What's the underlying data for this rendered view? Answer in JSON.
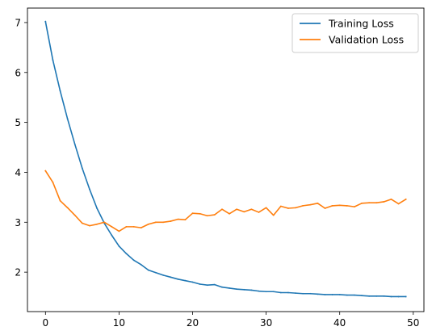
{
  "chart_data": {
    "type": "line",
    "title": "",
    "xlabel": "",
    "ylabel": "",
    "xlim": [
      -2.45,
      51.45
    ],
    "ylim": [
      1.21,
      7.29
    ],
    "xticks": [
      0,
      10,
      20,
      30,
      40,
      50
    ],
    "yticks": [
      2,
      3,
      4,
      5,
      6,
      7
    ],
    "grid": false,
    "legend_position": "top-right",
    "x": [
      0,
      1,
      2,
      3,
      4,
      5,
      6,
      7,
      8,
      9,
      10,
      11,
      12,
      13,
      14,
      15,
      16,
      17,
      18,
      19,
      20,
      21,
      22,
      23,
      24,
      25,
      26,
      27,
      28,
      29,
      30,
      31,
      32,
      33,
      34,
      35,
      36,
      37,
      38,
      39,
      40,
      41,
      42,
      43,
      44,
      45,
      46,
      47,
      48,
      49
    ],
    "series": [
      {
        "name": "Training Loss",
        "color": "#1f77b4",
        "values": [
          7.02,
          6.25,
          5.63,
          5.07,
          4.56,
          4.08,
          3.66,
          3.28,
          2.98,
          2.74,
          2.52,
          2.37,
          2.24,
          2.15,
          2.04,
          1.99,
          1.94,
          1.9,
          1.86,
          1.83,
          1.8,
          1.76,
          1.74,
          1.75,
          1.7,
          1.68,
          1.66,
          1.65,
          1.64,
          1.62,
          1.61,
          1.61,
          1.59,
          1.59,
          1.58,
          1.57,
          1.57,
          1.56,
          1.55,
          1.55,
          1.55,
          1.54,
          1.54,
          1.53,
          1.52,
          1.52,
          1.52,
          1.51,
          1.51,
          1.51
        ]
      },
      {
        "name": "Validation Loss",
        "color": "#ff7f0e",
        "values": [
          4.03,
          3.8,
          3.43,
          3.29,
          3.14,
          2.98,
          2.93,
          2.96,
          3.0,
          2.91,
          2.82,
          2.91,
          2.91,
          2.89,
          2.96,
          3.0,
          3.0,
          3.02,
          3.06,
          3.05,
          3.18,
          3.17,
          3.13,
          3.15,
          3.26,
          3.17,
          3.26,
          3.21,
          3.26,
          3.2,
          3.29,
          3.14,
          3.32,
          3.28,
          3.29,
          3.33,
          3.35,
          3.38,
          3.28,
          3.33,
          3.34,
          3.33,
          3.31,
          3.38,
          3.39,
          3.39,
          3.41,
          3.46,
          3.37,
          3.46
        ]
      }
    ]
  }
}
